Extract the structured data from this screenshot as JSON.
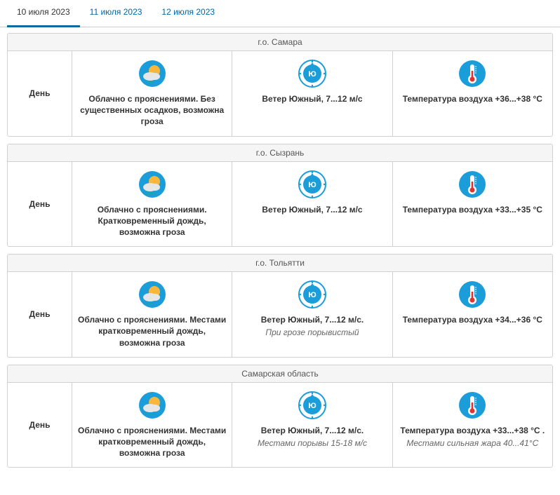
{
  "colors": {
    "accent": "#0a6aa1",
    "icon_bg": "#1b9dd9",
    "icon_inner": "#ffffff",
    "sun": "#f6b73c",
    "cloud": "#e6e6e6"
  },
  "tabs": [
    {
      "label": "10 июля 2023",
      "active": true
    },
    {
      "label": "11 июля 2023",
      "active": false
    },
    {
      "label": "12 июля 2023",
      "active": false
    }
  ],
  "day_label": "День",
  "regions": [
    {
      "name": "г.о. Самара",
      "weather": {
        "main": "Облачно с прояснениями. Без существенных осадков, возможна гроза",
        "sub": ""
      },
      "wind": {
        "main": "Ветер Южный, 7...12 м/с",
        "sub": "",
        "dir_label": "Ю"
      },
      "temp": {
        "main": "Температура воздуха +36...+38 °С",
        "sub": ""
      }
    },
    {
      "name": "г.о. Сызрань",
      "weather": {
        "main": "Облачно с прояснениями. Кратковременный дождь, возможна гроза",
        "sub": ""
      },
      "wind": {
        "main": "Ветер Южный, 7...12 м/с",
        "sub": "",
        "dir_label": "Ю"
      },
      "temp": {
        "main": "Температура воздуха +33...+35 °С",
        "sub": ""
      }
    },
    {
      "name": "г.о. Тольятти",
      "weather": {
        "main": "Облачно с прояснениями. Местами кратковременный дождь, возможна гроза",
        "sub": ""
      },
      "wind": {
        "main": "Ветер Южный, 7...12 м/с.",
        "sub": "При грозе порывистый",
        "dir_label": "Ю"
      },
      "temp": {
        "main": "Температура воздуха +34...+36 °С",
        "sub": ""
      }
    },
    {
      "name": "Самарская область",
      "weather": {
        "main": "Облачно с прояснениями. Местами кратковременный дождь, возможна гроза",
        "sub": ""
      },
      "wind": {
        "main": "Ветер Южный, 7...12 м/с.",
        "sub": "Местами порывы 15-18 м/с",
        "dir_label": "Ю"
      },
      "temp": {
        "main": "Температура воздуха +33...+38 °С .",
        "sub": "Местами сильная жара 40...41°С"
      }
    }
  ]
}
